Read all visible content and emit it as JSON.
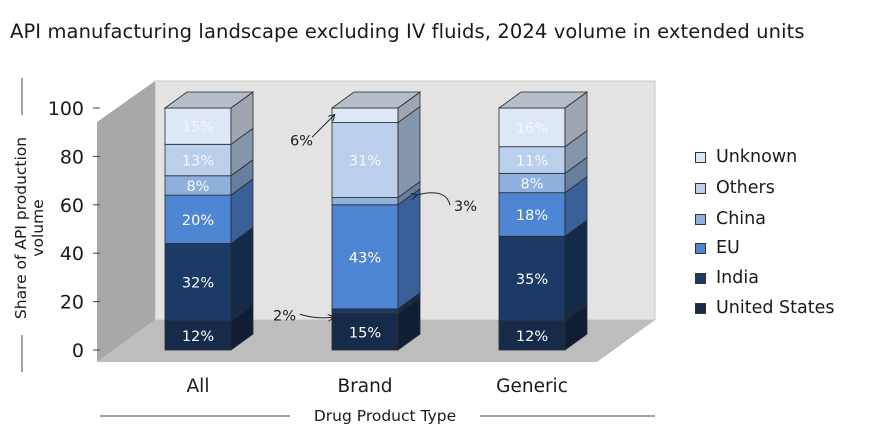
{
  "title": "API manufacturing landscape excluding IV fluids, 2024 volume in extended units",
  "chart_data": {
    "type": "bar",
    "stacked": true,
    "style": "3d",
    "categories": [
      "All",
      "Brand",
      "Generic"
    ],
    "xlabel": "Drug Product Type",
    "ylabel": "Share of API production volume",
    "ylim": [
      0,
      100
    ],
    "yticks": [
      0,
      20,
      40,
      60,
      80,
      100
    ],
    "legend_position": "right",
    "series": [
      {
        "name": "United States",
        "color": "#162a4a",
        "values": [
          12,
          15,
          12
        ],
        "labels": [
          "12%",
          "15%",
          "12%"
        ]
      },
      {
        "name": "India",
        "color": "#1c3a66",
        "values": [
          32,
          2,
          35
        ],
        "labels": [
          "32%",
          "2%",
          "35%"
        ]
      },
      {
        "name": "EU",
        "color": "#4f86d3",
        "values": [
          20,
          43,
          18
        ],
        "labels": [
          "20%",
          "43%",
          "18%"
        ]
      },
      {
        "name": "China",
        "color": "#8fb0dc",
        "values": [
          8,
          3,
          8
        ],
        "labels": [
          "8%",
          "3%",
          "8%"
        ]
      },
      {
        "name": "Others",
        "color": "#b9cfec",
        "values": [
          13,
          31,
          11
        ],
        "labels": [
          "13%",
          "31%",
          "11%"
        ]
      },
      {
        "name": "Unknown",
        "color": "#dde7f5",
        "values": [
          15,
          6,
          16
        ],
        "labels": [
          "15%",
          "6%",
          "16%"
        ]
      }
    ],
    "outside_labels": [
      {
        "category": "Brand",
        "series": "Unknown",
        "label": "6%"
      },
      {
        "category": "Brand",
        "series": "China",
        "label": "3%"
      },
      {
        "category": "Brand",
        "series": "India",
        "label": "2%"
      }
    ]
  }
}
